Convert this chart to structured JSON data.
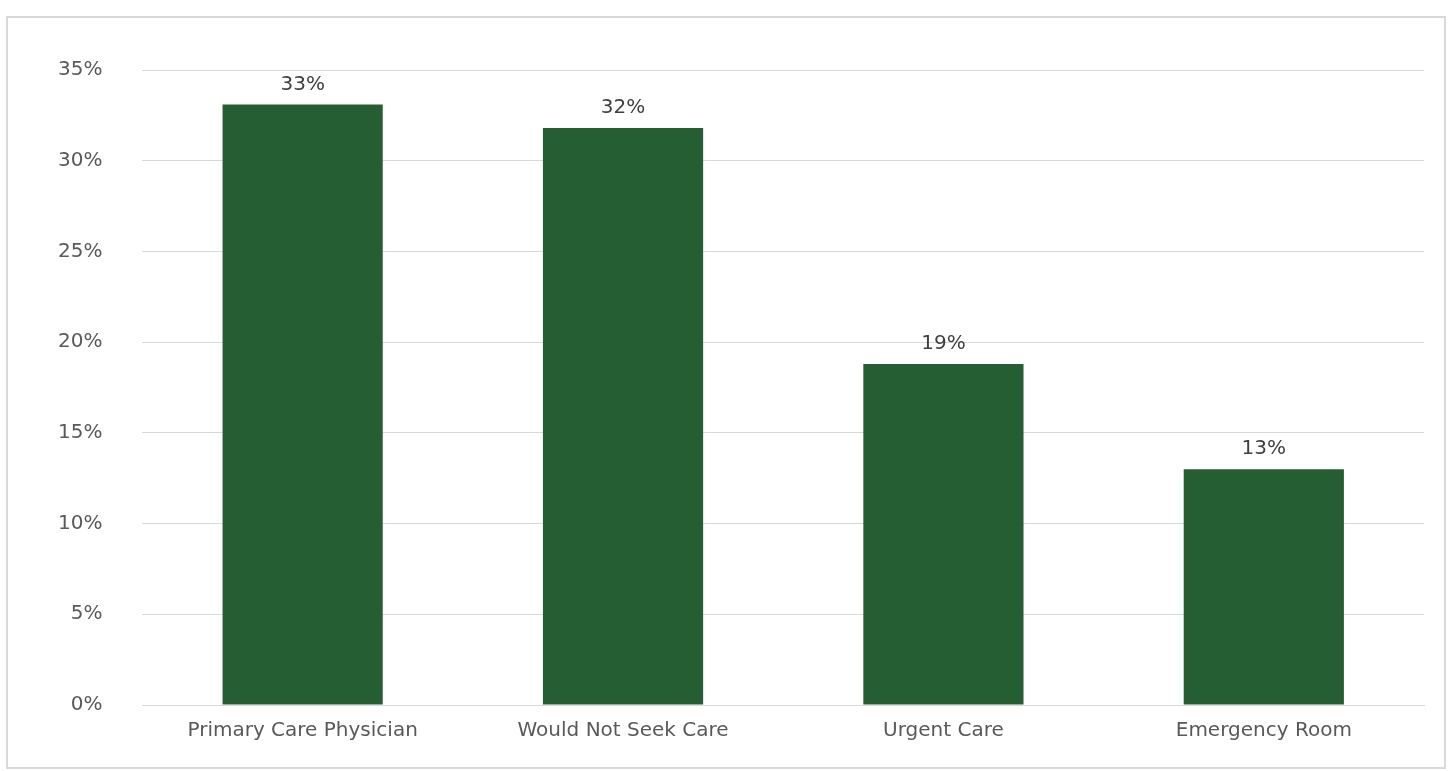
{
  "chart_data": {
    "type": "bar",
    "categories": [
      "Primary Care Physician",
      "Would Not Seek Care",
      "Urgent Care",
      "Emergency Room"
    ],
    "values": [
      33.1,
      31.8,
      18.8,
      13.0
    ],
    "color": "#255e33",
    "value_labels": [
      "33%",
      "32%",
      "19%",
      "13%"
    ],
    "ylim": [
      0,
      35
    ],
    "yticks": [
      {
        "value": 0,
        "label": "0%"
      },
      {
        "value": 5,
        "label": "5%"
      },
      {
        "value": 10,
        "label": "10%"
      },
      {
        "value": 15,
        "label": "15%"
      },
      {
        "value": 20,
        "label": "20%"
      },
      {
        "value": 25,
        "label": "25%"
      },
      {
        "value": 30,
        "label": "30%"
      },
      {
        "value": 35,
        "label": "35%"
      }
    ],
    "grid": "y",
    "legend": false
  }
}
